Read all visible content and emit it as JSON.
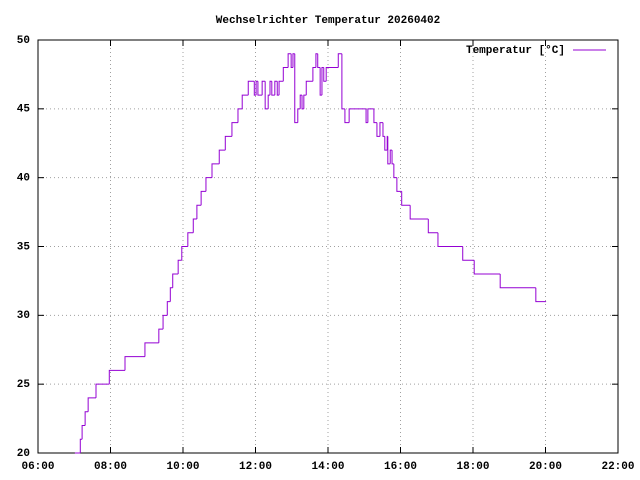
{
  "chart_data": {
    "type": "line",
    "style": "steps",
    "title": "Wechselrichter Temperatur 20260402",
    "x": [
      "07:01",
      "07:10",
      "07:13",
      "07:18",
      "07:23",
      "07:36",
      "07:58",
      "08:24",
      "08:57",
      "09:20",
      "09:27",
      "09:34",
      "09:39",
      "09:43",
      "09:52",
      "09:58",
      "10:08",
      "10:17",
      "10:23",
      "10:30",
      "10:38",
      "10:48",
      "11:00",
      "11:10",
      "11:21",
      "11:31",
      "11:38",
      "11:48",
      "11:58",
      "12:01",
      "12:04",
      "12:11",
      "12:16",
      "12:21",
      "12:24",
      "12:27",
      "12:32",
      "12:36",
      "12:39",
      "12:46",
      "12:54",
      "12:59",
      "13:02",
      "13:05",
      "13:10",
      "13:14",
      "13:17",
      "13:20",
      "13:24",
      "13:35",
      "13:40",
      "13:43",
      "13:47",
      "13:50",
      "13:53",
      "13:57",
      "14:17",
      "14:23",
      "14:28",
      "14:35",
      "15:03",
      "15:06",
      "15:16",
      "15:21",
      "15:26",
      "15:31",
      "15:34",
      "15:38",
      "15:39",
      "15:43",
      "15:46",
      "15:49",
      "15:54",
      "16:02",
      "16:16",
      "16:46",
      "17:02",
      "17:43",
      "18:02",
      "18:45",
      "19:44",
      "20:01"
    ],
    "series": [
      {
        "name": "Temperatur [°C]",
        "color": "#9400d3",
        "values": [
          20,
          21,
          22,
          23,
          24,
          25,
          26,
          27,
          28,
          29,
          30,
          31,
          32,
          33,
          34,
          35,
          36,
          37,
          38,
          39,
          40,
          41,
          42,
          43,
          44,
          45,
          46,
          47,
          46,
          47,
          46,
          47,
          45,
          46,
          47,
          46,
          47,
          46,
          47,
          48,
          49,
          48,
          49,
          44,
          45,
          46,
          45,
          46,
          47,
          48,
          49,
          48,
          46,
          48,
          47,
          48,
          49,
          45,
          44,
          45,
          44,
          45,
          44,
          43,
          44,
          43,
          42,
          43,
          41,
          42,
          41,
          40,
          39,
          38,
          37,
          36,
          35,
          34,
          33,
          32,
          31,
          31
        ]
      }
    ],
    "xlim": [
      "06:00",
      "22:00"
    ],
    "xticks": [
      "06:00",
      "08:00",
      "10:00",
      "12:00",
      "14:00",
      "16:00",
      "18:00",
      "20:00",
      "22:00"
    ],
    "ylim": [
      20,
      50
    ],
    "yticks": [
      20,
      25,
      30,
      35,
      40,
      45,
      50
    ],
    "grid": true,
    "legend": "top-right"
  }
}
